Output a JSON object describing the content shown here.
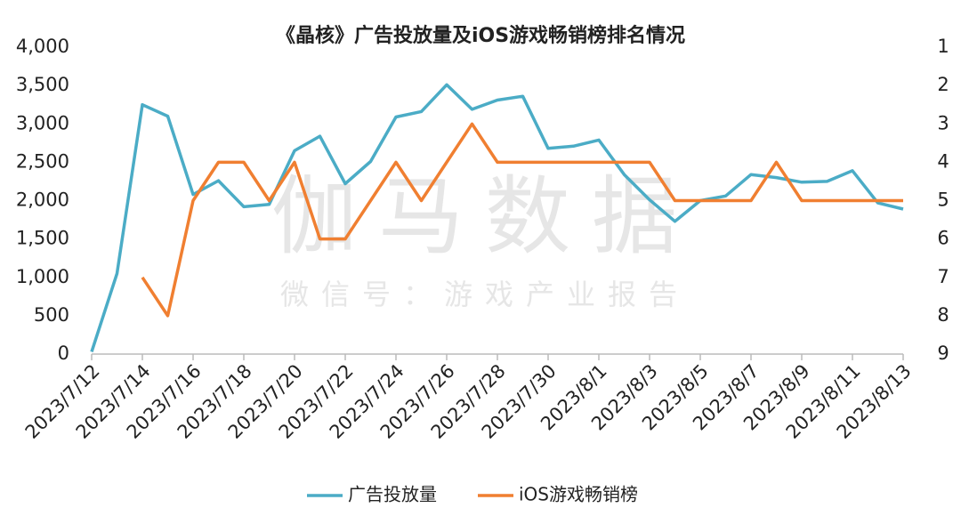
{
  "chart_data": {
    "type": "line",
    "title": "《晶核》广告投放量及iOS游戏畅销榜排名情况",
    "watermark": "伽马数据",
    "watermark_subtitle": "微信号：游戏产业报告",
    "categories": [
      "2023/7/12",
      null,
      "2023/7/14",
      null,
      "2023/7/16",
      null,
      "2023/7/18",
      null,
      "2023/7/20",
      null,
      "2023/7/22",
      null,
      "2023/7/24",
      null,
      "2023/7/26",
      null,
      "2023/7/28",
      null,
      "2023/7/30",
      null,
      "2023/8/1",
      null,
      "2023/8/3",
      null,
      "2023/8/5",
      null,
      "2023/8/7",
      null,
      "2023/8/9",
      null,
      "2023/8/11",
      null,
      "2023/8/13"
    ],
    "series": [
      {
        "name": "广告投放量",
        "color": "#4bacc6",
        "axis": "y",
        "values": [
          30,
          1050,
          3250,
          3100,
          2080,
          2260,
          1920,
          1950,
          2650,
          2840,
          2220,
          2510,
          3090,
          3160,
          3510,
          3190,
          3310,
          3360,
          2680,
          2710,
          2790,
          2340,
          2010,
          1730,
          2000,
          2060,
          2340,
          2300,
          2240,
          2250,
          2390,
          1970,
          1890
        ]
      },
      {
        "name": "iOS游戏畅销榜",
        "color": "#f07f31",
        "axis": "y2",
        "values": [
          null,
          null,
          7,
          8,
          5,
          4,
          4,
          5,
          4,
          6,
          6,
          5,
          4,
          5,
          4,
          3,
          4,
          4,
          4,
          4,
          4,
          4,
          4,
          5,
          5,
          5,
          5,
          4,
          5,
          5,
          5,
          5,
          5
        ]
      }
    ],
    "ylim": [
      0,
      4000
    ],
    "yticks": [
      0,
      500,
      {
        "value": 1000,
        "label": "1,000"
      },
      {
        "value": 1500,
        "label": "1,500"
      },
      {
        "value": 2000,
        "label": "2,000"
      },
      {
        "value": 2500,
        "label": "2,500"
      },
      {
        "value": 3000,
        "label": "3,000"
      },
      {
        "value": 3500,
        "label": "3,500"
      },
      {
        "value": 4000,
        "label": "4,000"
      }
    ],
    "y2lim": [
      9,
      1
    ],
    "y2ticks": [
      1,
      2,
      3,
      4,
      5,
      6,
      7,
      8,
      9
    ],
    "grid": false,
    "legend": "bottom"
  }
}
